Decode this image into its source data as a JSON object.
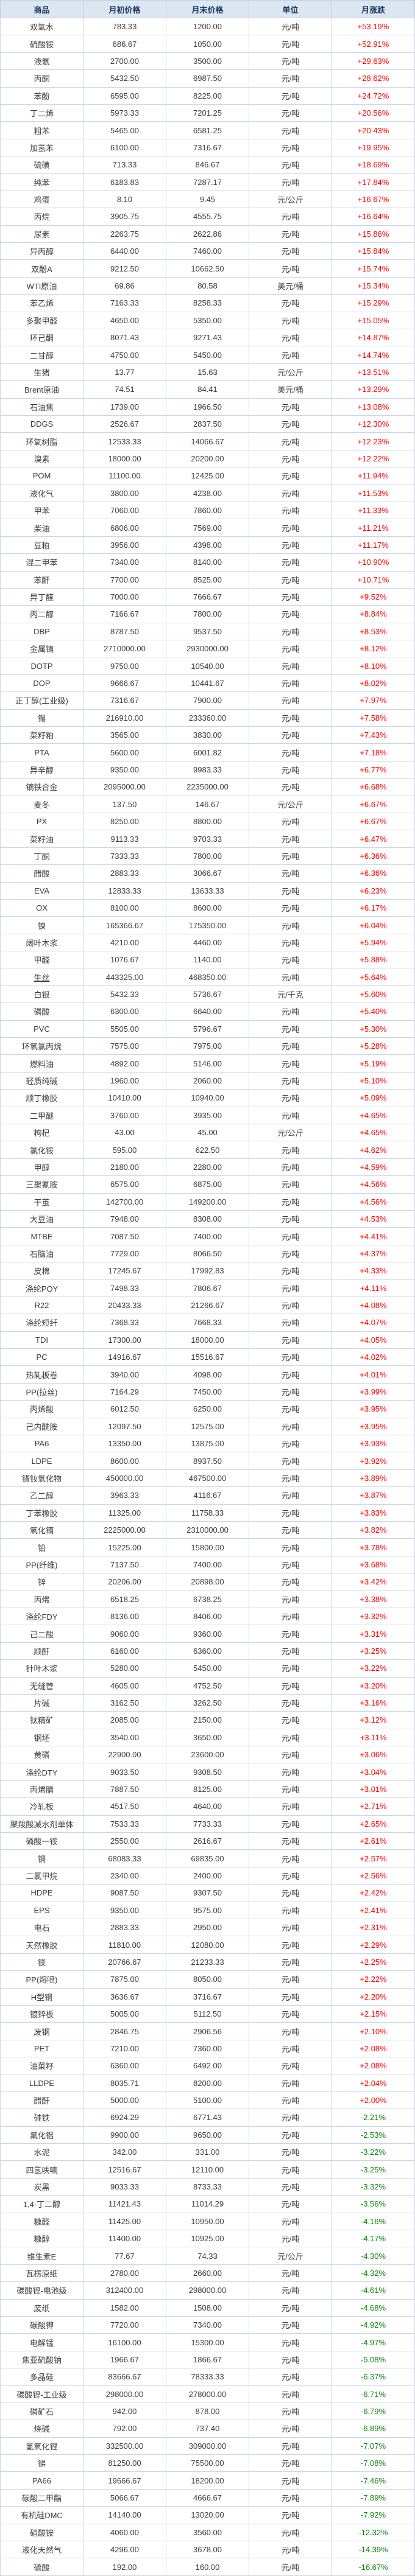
{
  "colors": {
    "positive": "#fe0000",
    "negative": "#0b840b",
    "header_bg": "#dce6f1",
    "header_text": "#17375e",
    "grid_line": "#ccd5e2",
    "body_text": "#3c3c3c"
  },
  "table": {
    "columns": [
      "商品",
      "月初价格",
      "月末价格",
      "单位",
      "月涨跌"
    ],
    "underlined_commodities": [
      "生丝"
    ],
    "rows": [
      [
        "双氧水",
        "783.33",
        "1200.00",
        "元/吨",
        "+53.19%"
      ],
      [
        "硫酸铵",
        "686.67",
        "1050.00",
        "元/吨",
        "+52.91%"
      ],
      [
        "液氨",
        "2700.00",
        "3500.00",
        "元/吨",
        "+29.63%"
      ],
      [
        "丙酮",
        "5432.50",
        "6987.50",
        "元/吨",
        "+28.62%"
      ],
      [
        "苯酚",
        "6595.00",
        "8225.00",
        "元/吨",
        "+24.72%"
      ],
      [
        "丁二烯",
        "5973.33",
        "7201.25",
        "元/吨",
        "+20.56%"
      ],
      [
        "粗苯",
        "5465.00",
        "6581.25",
        "元/吨",
        "+20.43%"
      ],
      [
        "加氢苯",
        "6100.00",
        "7316.67",
        "元/吨",
        "+19.95%"
      ],
      [
        "硫磺",
        "713.33",
        "846.67",
        "元/吨",
        "+18.69%"
      ],
      [
        "纯苯",
        "6183.83",
        "7287.17",
        "元/吨",
        "+17.84%"
      ],
      [
        "鸡蛋",
        "8.10",
        "9.45",
        "元/公斤",
        "+16.67%"
      ],
      [
        "丙烷",
        "3905.75",
        "4555.75",
        "元/吨",
        "+16.64%"
      ],
      [
        "尿素",
        "2263.75",
        "2622.86",
        "元/吨",
        "+15.86%"
      ],
      [
        "异丙醇",
        "6440.00",
        "7460.00",
        "元/吨",
        "+15.84%"
      ],
      [
        "双酚A",
        "9212.50",
        "10662.50",
        "元/吨",
        "+15.74%"
      ],
      [
        "WTI原油",
        "69.86",
        "80.58",
        "美元/桶",
        "+15.34%"
      ],
      [
        "苯乙烯",
        "7163.33",
        "8258.33",
        "元/吨",
        "+15.29%"
      ],
      [
        "多聚甲醛",
        "4650.00",
        "5350.00",
        "元/吨",
        "+15.05%"
      ],
      [
        "环己酮",
        "8071.43",
        "9271.43",
        "元/吨",
        "+14.87%"
      ],
      [
        "二甘醇",
        "4750.00",
        "5450.00",
        "元/吨",
        "+14.74%"
      ],
      [
        "生猪",
        "13.77",
        "15.63",
        "元/公斤",
        "+13.51%"
      ],
      [
        "Brent原油",
        "74.51",
        "84.41",
        "美元/桶",
        "+13.29%"
      ],
      [
        "石油焦",
        "1739.00",
        "1966.50",
        "元/吨",
        "+13.08%"
      ],
      [
        "DDGS",
        "2526.67",
        "2837.50",
        "元/吨",
        "+12.30%"
      ],
      [
        "环氧树脂",
        "12533.33",
        "14066.67",
        "元/吨",
        "+12.23%"
      ],
      [
        "溴素",
        "18000.00",
        "20200.00",
        "元/吨",
        "+12.22%"
      ],
      [
        "POM",
        "11100.00",
        "12425.00",
        "元/吨",
        "+11.94%"
      ],
      [
        "液化气",
        "3800.00",
        "4238.00",
        "元/吨",
        "+11.53%"
      ],
      [
        "甲苯",
        "7060.00",
        "7860.00",
        "元/吨",
        "+11.33%"
      ],
      [
        "柴油",
        "6806.00",
        "7569.00",
        "元/吨",
        "+11.21%"
      ],
      [
        "豆粕",
        "3956.00",
        "4398.00",
        "元/吨",
        "+11.17%"
      ],
      [
        "混二甲苯",
        "7340.00",
        "8140.00",
        "元/吨",
        "+10.90%"
      ],
      [
        "苯酐",
        "7700.00",
        "8525.00",
        "元/吨",
        "+10.71%"
      ],
      [
        "异丁醛",
        "7000.00",
        "7666.67",
        "元/吨",
        "+9.52%"
      ],
      [
        "丙二醇",
        "7166.67",
        "7800.00",
        "元/吨",
        "+8.84%"
      ],
      [
        "DBP",
        "8787.50",
        "9537.50",
        "元/吨",
        "+8.53%"
      ],
      [
        "金属镝",
        "2710000.00",
        "2930000.00",
        "元/吨",
        "+8.12%"
      ],
      [
        "DOTP",
        "9750.00",
        "10540.00",
        "元/吨",
        "+8.10%"
      ],
      [
        "DOP",
        "9666.67",
        "10441.67",
        "元/吨",
        "+8.02%"
      ],
      [
        "正丁醇(工业级)",
        "7316.67",
        "7900.00",
        "元/吨",
        "+7.97%"
      ],
      [
        "锡",
        "216910.00",
        "233360.00",
        "元/吨",
        "+7.58%"
      ],
      [
        "菜籽粕",
        "3565.00",
        "3830.00",
        "元/吨",
        "+7.43%"
      ],
      [
        "PTA",
        "5600.00",
        "6001.82",
        "元/吨",
        "+7.18%"
      ],
      [
        "异辛醇",
        "9350.00",
        "9983.33",
        "元/吨",
        "+6.77%"
      ],
      [
        "镝铁合金",
        "2095000.00",
        "2235000.00",
        "元/吨",
        "+6.68%"
      ],
      [
        "麦冬",
        "137.50",
        "146.67",
        "元/公斤",
        "+6.67%"
      ],
      [
        "PX",
        "8250.00",
        "8800.00",
        "元/吨",
        "+6.67%"
      ],
      [
        "菜籽油",
        "9113.33",
        "9703.33",
        "元/吨",
        "+6.47%"
      ],
      [
        "丁酮",
        "7333.33",
        "7800.00",
        "元/吨",
        "+6.36%"
      ],
      [
        "醋酸",
        "2883.33",
        "3066.67",
        "元/吨",
        "+6.36%"
      ],
      [
        "EVA",
        "12833.33",
        "13633.33",
        "元/吨",
        "+6.23%"
      ],
      [
        "OX",
        "8100.00",
        "8600.00",
        "元/吨",
        "+6.17%"
      ],
      [
        "镍",
        "165366.67",
        "175350.00",
        "元/吨",
        "+6.04%"
      ],
      [
        "阔叶木浆",
        "4210.00",
        "4460.00",
        "元/吨",
        "+5.94%"
      ],
      [
        "甲醛",
        "1076.67",
        "1140.00",
        "元/吨",
        "+5.88%"
      ],
      [
        "生丝",
        "443325.00",
        "468350.00",
        "元/吨",
        "+5.64%"
      ],
      [
        "白银",
        "5432.33",
        "5736.67",
        "元/千克",
        "+5.60%"
      ],
      [
        "磷酸",
        "6300.00",
        "6640.00",
        "元/吨",
        "+5.40%"
      ],
      [
        "PVC",
        "5505.00",
        "5796.67",
        "元/吨",
        "+5.30%"
      ],
      [
        "环氧氯丙烷",
        "7575.00",
        "7975.00",
        "元/吨",
        "+5.28%"
      ],
      [
        "燃料油",
        "4892.00",
        "5146.00",
        "元/吨",
        "+5.19%"
      ],
      [
        "轻质纯碱",
        "1960.00",
        "2060.00",
        "元/吨",
        "+5.10%"
      ],
      [
        "顺丁橡胶",
        "10410.00",
        "10940.00",
        "元/吨",
        "+5.09%"
      ],
      [
        "二甲醚",
        "3760.00",
        "3935.00",
        "元/吨",
        "+4.65%"
      ],
      [
        "枸杞",
        "43.00",
        "45.00",
        "元/公斤",
        "+4.65%"
      ],
      [
        "氯化铵",
        "595.00",
        "622.50",
        "元/吨",
        "+4.62%"
      ],
      [
        "甲醇",
        "2180.00",
        "2280.00",
        "元/吨",
        "+4.59%"
      ],
      [
        "三聚氰胺",
        "6575.00",
        "6875.00",
        "元/吨",
        "+4.56%"
      ],
      [
        "干茧",
        "142700.00",
        "149200.00",
        "元/吨",
        "+4.56%"
      ],
      [
        "大豆油",
        "7948.00",
        "8308.00",
        "元/吨",
        "+4.53%"
      ],
      [
        "MTBE",
        "7087.50",
        "7400.00",
        "元/吨",
        "+4.41%"
      ],
      [
        "石脑油",
        "7729.00",
        "8066.50",
        "元/吨",
        "+4.37%"
      ],
      [
        "皮棉",
        "17245.67",
        "17992.83",
        "元/吨",
        "+4.33%"
      ],
      [
        "涤纶POY",
        "7498.33",
        "7806.67",
        "元/吨",
        "+4.11%"
      ],
      [
        "R22",
        "20433.33",
        "21266.67",
        "元/吨",
        "+4.08%"
      ],
      [
        "涤纶短纤",
        "7368.33",
        "7668.33",
        "元/吨",
        "+4.07%"
      ],
      [
        "TDI",
        "17300.00",
        "18000.00",
        "元/吨",
        "+4.05%"
      ],
      [
        "PC",
        "14916.67",
        "15516.67",
        "元/吨",
        "+4.02%"
      ],
      [
        "热轧板卷",
        "3940.00",
        "4098.00",
        "元/吨",
        "+4.01%"
      ],
      [
        "PP(拉丝)",
        "7164.29",
        "7450.00",
        "元/吨",
        "+3.99%"
      ],
      [
        "丙烯酸",
        "6012.50",
        "6250.00",
        "元/吨",
        "+3.95%"
      ],
      [
        "己内酰胺",
        "12097.50",
        "12575.00",
        "元/吨",
        "+3.95%"
      ],
      [
        "PA6",
        "13350.00",
        "13875.00",
        "元/吨",
        "+3.93%"
      ],
      [
        "LDPE",
        "8600.00",
        "8937.50",
        "元/吨",
        "+3.92%"
      ],
      [
        "镨钕氧化物",
        "450000.00",
        "467500.00",
        "元/吨",
        "+3.89%"
      ],
      [
        "乙二醇",
        "3963.33",
        "4116.67",
        "元/吨",
        "+3.87%"
      ],
      [
        "丁苯橡胶",
        "11325.00",
        "11758.33",
        "元/吨",
        "+3.83%"
      ],
      [
        "氧化镝",
        "2225000.00",
        "2310000.00",
        "元/吨",
        "+3.82%"
      ],
      [
        "铅",
        "15225.00",
        "15800.00",
        "元/吨",
        "+3.78%"
      ],
      [
        "PP(纤维)",
        "7137.50",
        "7400.00",
        "元/吨",
        "+3.68%"
      ],
      [
        "锌",
        "20206.00",
        "20898.00",
        "元/吨",
        "+3.42%"
      ],
      [
        "丙烯",
        "6518.25",
        "6738.25",
        "元/吨",
        "+3.38%"
      ],
      [
        "涤纶FDY",
        "8136.00",
        "8406.00",
        "元/吨",
        "+3.32%"
      ],
      [
        "己二酸",
        "9060.00",
        "9360.00",
        "元/吨",
        "+3.31%"
      ],
      [
        "顺酐",
        "6160.00",
        "6360.00",
        "元/吨",
        "+3.25%"
      ],
      [
        "针叶木浆",
        "5280.00",
        "5450.00",
        "元/吨",
        "+3.22%"
      ],
      [
        "无缝管",
        "4605.00",
        "4752.50",
        "元/吨",
        "+3.20%"
      ],
      [
        "片碱",
        "3162.50",
        "3262.50",
        "元/吨",
        "+3.16%"
      ],
      [
        "钛精矿",
        "2085.00",
        "2150.00",
        "元/吨",
        "+3.12%"
      ],
      [
        "钢坯",
        "3540.00",
        "3650.00",
        "元/吨",
        "+3.11%"
      ],
      [
        "黄磷",
        "22900.00",
        "23600.00",
        "元/吨",
        "+3.06%"
      ],
      [
        "涤纶DTY",
        "9033.50",
        "9308.50",
        "元/吨",
        "+3.04%"
      ],
      [
        "丙烯腈",
        "7887.50",
        "8125.00",
        "元/吨",
        "+3.01%"
      ],
      [
        "冷轧板",
        "4517.50",
        "4640.00",
        "元/吨",
        "+2.71%"
      ],
      [
        "聚羧酸减水剂单体",
        "7533.33",
        "7733.33",
        "元/吨",
        "+2.65%"
      ],
      [
        "磷酸一铵",
        "2550.00",
        "2616.67",
        "元/吨",
        "+2.61%"
      ],
      [
        "铜",
        "68083.33",
        "69835.00",
        "元/吨",
        "+2.57%"
      ],
      [
        "二氯甲烷",
        "2340.00",
        "2400.00",
        "元/吨",
        "+2.56%"
      ],
      [
        "HDPE",
        "9087.50",
        "9307.50",
        "元/吨",
        "+2.42%"
      ],
      [
        "EPS",
        "9350.00",
        "9575.00",
        "元/吨",
        "+2.41%"
      ],
      [
        "电石",
        "2883.33",
        "2950.00",
        "元/吨",
        "+2.31%"
      ],
      [
        "天然橡胶",
        "11810.00",
        "12080.00",
        "元/吨",
        "+2.29%"
      ],
      [
        "镁",
        "20766.67",
        "21233.33",
        "元/吨",
        "+2.25%"
      ],
      [
        "PP(熔喷)",
        "7875.00",
        "8050.00",
        "元/吨",
        "+2.22%"
      ],
      [
        "H型钢",
        "3636.67",
        "3716.67",
        "元/吨",
        "+2.20%"
      ],
      [
        "镀锌板",
        "5005.00",
        "5112.50",
        "元/吨",
        "+2.15%"
      ],
      [
        "废钢",
        "2846.75",
        "2906.56",
        "元/吨",
        "+2.10%"
      ],
      [
        "PET",
        "7210.00",
        "7360.00",
        "元/吨",
        "+2.08%"
      ],
      [
        "油菜籽",
        "6360.00",
        "6492.00",
        "元/吨",
        "+2.08%"
      ],
      [
        "LLDPE",
        "8035.71",
        "8200.00",
        "元/吨",
        "+2.04%"
      ],
      [
        "醋酐",
        "5000.00",
        "5100.00",
        "元/吨",
        "+2.00%"
      ],
      [
        "硅铁",
        "6924.29",
        "6771.43",
        "元/吨",
        "-2.21%"
      ],
      [
        "氟化铝",
        "9900.00",
        "9650.00",
        "元/吨",
        "-2.53%"
      ],
      [
        "水泥",
        "342.00",
        "331.00",
        "元/吨",
        "-3.22%"
      ],
      [
        "四氢呋喃",
        "12516.67",
        "12110.00",
        "元/吨",
        "-3.25%"
      ],
      [
        "炭黑",
        "9033.33",
        "8733.33",
        "元/吨",
        "-3.32%"
      ],
      [
        "1,4-丁二醇",
        "11421.43",
        "11014.29",
        "元/吨",
        "-3.56%"
      ],
      [
        "糠醛",
        "11425.00",
        "10950.00",
        "元/吨",
        "-4.16%"
      ],
      [
        "糠醇",
        "11400.00",
        "10925.00",
        "元/吨",
        "-4.17%"
      ],
      [
        "维生素E",
        "77.67",
        "74.33",
        "元/公斤",
        "-4.30%"
      ],
      [
        "瓦楞原纸",
        "2780.00",
        "2660.00",
        "元/吨",
        "-4.32%"
      ],
      [
        "碳酸锂-电池级",
        "312400.00",
        "298000.00",
        "元/吨",
        "-4.61%"
      ],
      [
        "废纸",
        "1582.00",
        "1508.00",
        "元/吨",
        "-4.68%"
      ],
      [
        "碳酸钾",
        "7720.00",
        "7340.00",
        "元/吨",
        "-4.92%"
      ],
      [
        "电解锰",
        "16100.00",
        "15300.00",
        "元/吨",
        "-4.97%"
      ],
      [
        "焦亚硫酸钠",
        "1966.67",
        "1866.67",
        "元/吨",
        "-5.08%"
      ],
      [
        "多晶硅",
        "83666.67",
        "78333.33",
        "元/吨",
        "-6.37%"
      ],
      [
        "碳酸锂-工业级",
        "298000.00",
        "278000.00",
        "元/吨",
        "-6.71%"
      ],
      [
        "磷矿石",
        "942.00",
        "878.00",
        "元/吨",
        "-6.79%"
      ],
      [
        "烧碱",
        "792.00",
        "737.40",
        "元/吨",
        "-6.89%"
      ],
      [
        "氢氧化锂",
        "332500.00",
        "309000.00",
        "元/吨",
        "-7.07%"
      ],
      [
        "锑",
        "81250.00",
        "75500.00",
        "元/吨",
        "-7.08%"
      ],
      [
        "PA66",
        "19666.67",
        "18200.00",
        "元/吨",
        "-7.46%"
      ],
      [
        "碳酸二甲酯",
        "5066.67",
        "4666.67",
        "元/吨",
        "-7.89%"
      ],
      [
        "有机硅DMC",
        "14140.00",
        "13020.00",
        "元/吨",
        "-7.92%"
      ],
      [
        "硝酸铵",
        "4060.00",
        "3560.00",
        "元/吨",
        "-12.32%"
      ],
      [
        "液化天然气",
        "4296.00",
        "3678.00",
        "元/吨",
        "-14.39%"
      ],
      [
        "硫酸",
        "192.00",
        "160.00",
        "元/吨",
        "-16.67%"
      ]
    ]
  }
}
